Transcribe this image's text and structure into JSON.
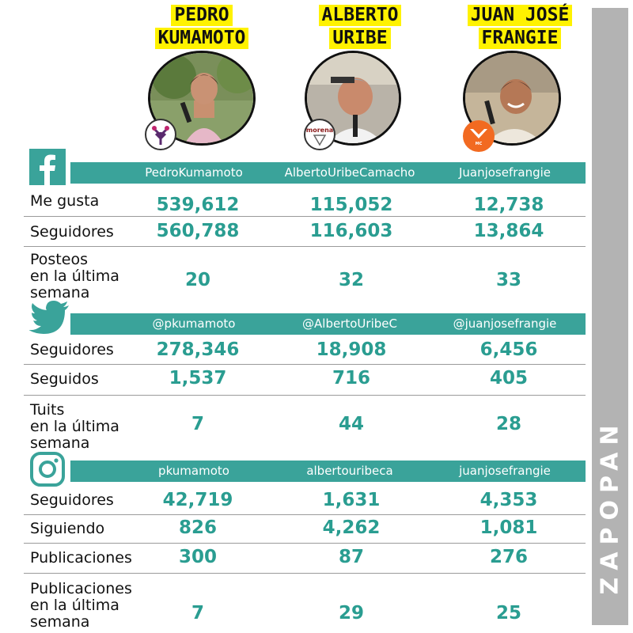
{
  "region": "ZAPOPAN",
  "candidates": [
    {
      "name_line1": "PEDRO",
      "name_line2": "KUMAMOTO",
      "party": "Futuro"
    },
    {
      "name_line1": "ALBERTO",
      "name_line2": "URIBE",
      "party": "morena"
    },
    {
      "name_line1": "JUAN JOSÉ",
      "name_line2": "FRANGIE",
      "party": "MOVIMIENTO CIUDADANO"
    }
  ],
  "facebook": {
    "icon": "facebook-icon",
    "handles": [
      "PedroKumamoto",
      "AlbertoUribeCamacho",
      "Juanjosefrangie"
    ],
    "rows": [
      {
        "label": "Me gusta",
        "values": [
          "539,612",
          "115,052",
          "12,738"
        ]
      },
      {
        "label": "Seguidores",
        "values": [
          "560,788",
          "116,603",
          "13,864"
        ]
      },
      {
        "label_lines": [
          "Posteos",
          "en la última",
          "semana"
        ],
        "values": [
          "20",
          "32",
          "33"
        ]
      }
    ]
  },
  "twitter": {
    "icon": "twitter-bird-icon",
    "handles": [
      "@pkumamoto",
      "@AlbertoUribeC",
      "@juanjosefrangie"
    ],
    "rows": [
      {
        "label": "Seguidores",
        "values": [
          "278,346",
          "18,908",
          "6,456"
        ]
      },
      {
        "label": "Seguidos",
        "values": [
          "1,537",
          "716",
          "405"
        ]
      },
      {
        "label_lines": [
          "Tuits",
          "en la última",
          "semana"
        ],
        "values": [
          "7",
          "44",
          "28"
        ]
      }
    ]
  },
  "instagram": {
    "icon": "instagram-icon",
    "handles": [
      "pkumamoto",
      "albertouribeca",
      "juanjosefrangie"
    ],
    "rows": [
      {
        "label": "Seguidores",
        "values": [
          "42,719",
          "1,631",
          "4,353"
        ]
      },
      {
        "label": "Siguiendo",
        "values": [
          "826",
          "4,262",
          "1,081"
        ]
      },
      {
        "label": "Publicaciones",
        "values": [
          "300",
          "87",
          "276"
        ]
      },
      {
        "label_lines": [
          "Publicaciones",
          "en la última",
          "semana"
        ],
        "values": [
          "7",
          "29",
          "25"
        ]
      }
    ]
  },
  "colors": {
    "teal": "#3aa39a",
    "value_teal": "#2a9d91",
    "yellow": "#fff200",
    "band_grey": "#b3b3b3"
  }
}
